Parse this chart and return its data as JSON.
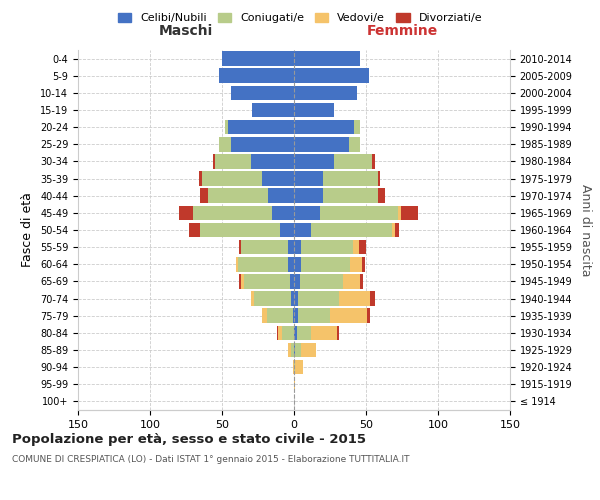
{
  "age_groups": [
    "100+",
    "95-99",
    "90-94",
    "85-89",
    "80-84",
    "75-79",
    "70-74",
    "65-69",
    "60-64",
    "55-59",
    "50-54",
    "45-49",
    "40-44",
    "35-39",
    "30-34",
    "25-29",
    "20-24",
    "15-19",
    "10-14",
    "5-9",
    "0-4"
  ],
  "birth_years": [
    "≤ 1914",
    "1915-1919",
    "1920-1924",
    "1925-1929",
    "1930-1934",
    "1935-1939",
    "1940-1944",
    "1945-1949",
    "1950-1954",
    "1955-1959",
    "1960-1964",
    "1965-1969",
    "1970-1974",
    "1975-1979",
    "1980-1984",
    "1985-1989",
    "1990-1994",
    "1995-1999",
    "2000-2004",
    "2005-2009",
    "2010-2014"
  ],
  "male": {
    "celibi": [
      0,
      0,
      0,
      0,
      0,
      1,
      2,
      3,
      4,
      4,
      10,
      15,
      18,
      22,
      30,
      44,
      46,
      29,
      44,
      52,
      50
    ],
    "coniugati": [
      0,
      0,
      0,
      2,
      8,
      18,
      26,
      32,
      35,
      33,
      55,
      55,
      42,
      42,
      25,
      8,
      2,
      0,
      0,
      0,
      0
    ],
    "vedovi": [
      0,
      0,
      1,
      2,
      3,
      3,
      2,
      2,
      1,
      0,
      0,
      0,
      0,
      0,
      0,
      0,
      0,
      0,
      0,
      0,
      0
    ],
    "divorziati": [
      0,
      0,
      0,
      0,
      1,
      0,
      0,
      1,
      0,
      1,
      8,
      10,
      5,
      2,
      1,
      0,
      0,
      0,
      0,
      0,
      0
    ]
  },
  "female": {
    "nubili": [
      0,
      0,
      0,
      1,
      2,
      3,
      3,
      4,
      5,
      5,
      12,
      18,
      20,
      20,
      28,
      38,
      42,
      28,
      44,
      52,
      46
    ],
    "coniugate": [
      0,
      0,
      1,
      4,
      10,
      22,
      28,
      30,
      34,
      36,
      56,
      54,
      38,
      38,
      26,
      8,
      4,
      0,
      0,
      0,
      0
    ],
    "vedove": [
      0,
      1,
      5,
      10,
      18,
      26,
      22,
      12,
      8,
      4,
      2,
      2,
      0,
      0,
      0,
      0,
      0,
      0,
      0,
      0,
      0
    ],
    "divorziate": [
      0,
      0,
      0,
      0,
      1,
      2,
      3,
      2,
      2,
      5,
      3,
      12,
      5,
      2,
      2,
      0,
      0,
      0,
      0,
      0,
      0
    ]
  },
  "colors": {
    "celibi_nubili": "#4472C4",
    "coniugati": "#B8CC8A",
    "vedovi": "#F5C36A",
    "divorziati": "#C0392B"
  },
  "xlim": 150,
  "title": "Popolazione per età, sesso e stato civile - 2015",
  "subtitle": "COMUNE DI CRESPIATICA (LO) - Dati ISTAT 1° gennaio 2015 - Elaborazione TUTTITALIA.IT",
  "ylabel_left": "Fasce di età",
  "ylabel_right": "Anni di nascita",
  "xlabel_left": "Maschi",
  "xlabel_right": "Femmine",
  "legend_labels": [
    "Celibi/Nubili",
    "Coniugati/e",
    "Vedovi/e",
    "Divorziati/e"
  ]
}
